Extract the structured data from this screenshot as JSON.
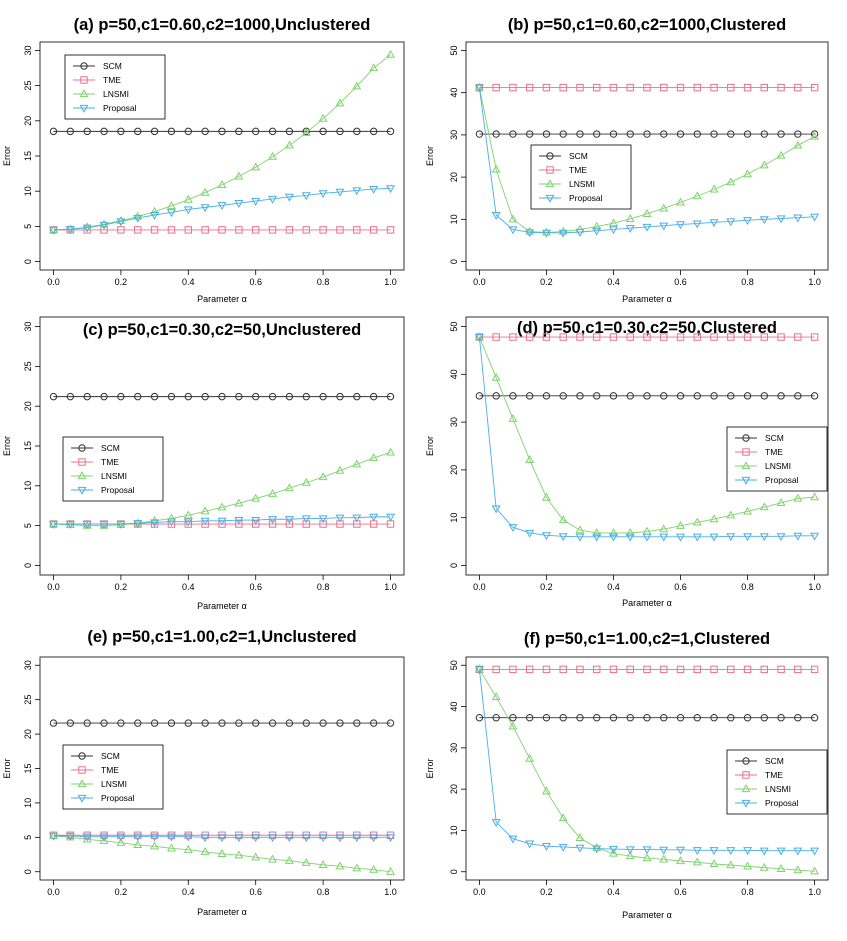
{
  "colors": {
    "SCM": "#333333",
    "TME": "#e8738a",
    "LNSMI": "#7fd36b",
    "Proposal": "#4aaee6"
  },
  "markers": {
    "SCM": "circle",
    "TME": "square",
    "LNSMI": "triangle-up",
    "Proposal": "triangle-down"
  },
  "chart_data": [
    {
      "type": "line",
      "title": "(a) p=50,c1=0.60,c2=1000,Unclustered",
      "xlabel": "Parameter α",
      "ylabel": "Error",
      "xlim": [
        0,
        1
      ],
      "ylim": [
        0,
        30
      ],
      "xticks": [
        0,
        0.2,
        0.4,
        0.6,
        0.8,
        1.0
      ],
      "xtick_labels": [
        "0.0",
        "0.2",
        "0.4",
        "0.6",
        "0.8",
        "1.0"
      ],
      "yticks": [
        0,
        5,
        10,
        15,
        20,
        25,
        30
      ],
      "ytick_labels": [
        "0",
        "5",
        "10",
        "15",
        "20",
        "25",
        "30"
      ],
      "legend": {
        "position": "top-left",
        "entries": [
          "SCM",
          "TME",
          "LNSMI",
          "Proposal"
        ]
      },
      "x": [
        0,
        0.05,
        0.1,
        0.15,
        0.2,
        0.25,
        0.3,
        0.35,
        0.4,
        0.45,
        0.5,
        0.55,
        0.6,
        0.65,
        0.7,
        0.75,
        0.8,
        0.85,
        0.9,
        0.95,
        1.0
      ],
      "series": [
        {
          "name": "SCM",
          "values": [
            18.5,
            18.5,
            18.5,
            18.5,
            18.5,
            18.5,
            18.5,
            18.5,
            18.5,
            18.5,
            18.5,
            18.5,
            18.5,
            18.5,
            18.5,
            18.5,
            18.5,
            18.5,
            18.5,
            18.5,
            18.5
          ]
        },
        {
          "name": "TME",
          "values": [
            4.5,
            4.5,
            4.5,
            4.5,
            4.5,
            4.5,
            4.5,
            4.5,
            4.5,
            4.5,
            4.5,
            4.5,
            4.5,
            4.5,
            4.5,
            4.5,
            4.5,
            4.5,
            4.5,
            4.5,
            4.5
          ]
        },
        {
          "name": "LNSMI",
          "values": [
            4.5,
            4.6,
            4.9,
            5.3,
            5.8,
            6.4,
            7.1,
            7.9,
            8.8,
            9.8,
            10.9,
            12.1,
            13.4,
            14.9,
            16.5,
            18.3,
            20.3,
            22.5,
            24.9,
            27.5,
            29.4
          ]
        },
        {
          "name": "Proposal",
          "values": [
            4.5,
            4.6,
            4.8,
            5.2,
            5.7,
            6.2,
            6.6,
            7.0,
            7.4,
            7.7,
            8.0,
            8.3,
            8.6,
            8.9,
            9.2,
            9.4,
            9.7,
            9.9,
            10.1,
            10.3,
            10.4
          ]
        }
      ]
    },
    {
      "type": "line",
      "title": "(b) p=50,c1=0.60,c2=1000,Clustered",
      "xlabel": "Parameter α",
      "ylabel": "Error",
      "xlim": [
        0,
        1
      ],
      "ylim": [
        0,
        50
      ],
      "xticks": [
        0,
        0.2,
        0.4,
        0.6,
        0.8,
        1.0
      ],
      "xtick_labels": [
        "0.0",
        "0.2",
        "0.4",
        "0.6",
        "0.8",
        "1.0"
      ],
      "yticks": [
        0,
        10,
        20,
        30,
        40,
        50
      ],
      "ytick_labels": [
        "0",
        "10",
        "20",
        "30",
        "40",
        "50"
      ],
      "legend": {
        "position": "center-left",
        "entries": [
          "SCM",
          "TME",
          "LNSMI",
          "Proposal"
        ]
      },
      "x": [
        0,
        0.05,
        0.1,
        0.15,
        0.2,
        0.25,
        0.3,
        0.35,
        0.4,
        0.45,
        0.5,
        0.55,
        0.6,
        0.65,
        0.7,
        0.75,
        0.8,
        0.85,
        0.9,
        0.95,
        1.0
      ],
      "series": [
        {
          "name": "SCM",
          "values": [
            30.2,
            30.2,
            30.2,
            30.2,
            30.2,
            30.2,
            30.2,
            30.2,
            30.2,
            30.2,
            30.2,
            30.2,
            30.2,
            30.2,
            30.2,
            30.2,
            30.2,
            30.2,
            30.2,
            30.2,
            30.2
          ]
        },
        {
          "name": "TME",
          "values": [
            41.2,
            41.2,
            41.2,
            41.2,
            41.2,
            41.2,
            41.2,
            41.2,
            41.2,
            41.2,
            41.2,
            41.2,
            41.2,
            41.2,
            41.2,
            41.2,
            41.2,
            41.2,
            41.2,
            41.2,
            41.2
          ]
        },
        {
          "name": "LNSMI",
          "values": [
            41.2,
            21.8,
            10.0,
            7.1,
            6.9,
            7.1,
            7.6,
            8.3,
            9.1,
            10.1,
            11.3,
            12.6,
            14.0,
            15.5,
            17.1,
            18.8,
            20.7,
            22.8,
            25.1,
            27.5,
            29.6
          ]
        },
        {
          "name": "Proposal",
          "values": [
            41.2,
            11.0,
            7.6,
            6.9,
            6.8,
            6.8,
            7.0,
            7.3,
            7.6,
            7.9,
            8.2,
            8.5,
            8.8,
            9.0,
            9.3,
            9.5,
            9.8,
            10.0,
            10.2,
            10.4,
            10.6
          ]
        }
      ]
    },
    {
      "type": "line",
      "title": "(c) p=50,c1=0.30,c2=50,Unclustered",
      "xlabel": "Parameter α",
      "ylabel": "Error",
      "xlim": [
        0,
        1
      ],
      "ylim": [
        0,
        30
      ],
      "xticks": [
        0,
        0.2,
        0.4,
        0.6,
        0.8,
        1.0
      ],
      "xtick_labels": [
        "0.0",
        "0.2",
        "0.4",
        "0.6",
        "0.8",
        "1.0"
      ],
      "yticks": [
        0,
        5,
        10,
        15,
        20,
        25,
        30
      ],
      "ytick_labels": [
        "0",
        "5",
        "10",
        "15",
        "20",
        "25",
        "30"
      ],
      "legend": {
        "position": "center-left",
        "entries": [
          "SCM",
          "TME",
          "LNSMI",
          "Proposal"
        ]
      },
      "x": [
        0,
        0.05,
        0.1,
        0.15,
        0.2,
        0.25,
        0.3,
        0.35,
        0.4,
        0.45,
        0.5,
        0.55,
        0.6,
        0.65,
        0.7,
        0.75,
        0.8,
        0.85,
        0.9,
        0.95,
        1.0
      ],
      "series": [
        {
          "name": "SCM",
          "values": [
            21.2,
            21.2,
            21.2,
            21.2,
            21.2,
            21.2,
            21.2,
            21.2,
            21.2,
            21.2,
            21.2,
            21.2,
            21.2,
            21.2,
            21.2,
            21.2,
            21.2,
            21.2,
            21.2,
            21.2,
            21.2
          ]
        },
        {
          "name": "TME",
          "values": [
            5.2,
            5.2,
            5.2,
            5.2,
            5.2,
            5.2,
            5.2,
            5.2,
            5.2,
            5.2,
            5.2,
            5.2,
            5.2,
            5.2,
            5.2,
            5.2,
            5.2,
            5.2,
            5.2,
            5.2,
            5.2
          ]
        },
        {
          "name": "LNSMI",
          "values": [
            5.2,
            5.1,
            5.0,
            5.0,
            5.1,
            5.3,
            5.6,
            5.9,
            6.3,
            6.8,
            7.3,
            7.8,
            8.4,
            9.0,
            9.7,
            10.4,
            11.1,
            11.9,
            12.7,
            13.5,
            14.2
          ]
        },
        {
          "name": "Proposal",
          "values": [
            5.2,
            5.2,
            5.2,
            5.2,
            5.2,
            5.3,
            5.4,
            5.5,
            5.5,
            5.6,
            5.6,
            5.7,
            5.7,
            5.8,
            5.8,
            5.9,
            5.9,
            6.0,
            6.0,
            6.1,
            6.1
          ]
        }
      ]
    },
    {
      "type": "line",
      "title": "(d) p=50,c1=0.30,c2=50,Clustered",
      "xlabel": "Parameter α",
      "ylabel": "Error",
      "xlim": [
        0,
        1
      ],
      "ylim": [
        0,
        50
      ],
      "xticks": [
        0,
        0.2,
        0.4,
        0.6,
        0.8,
        1.0
      ],
      "xtick_labels": [
        "0.0",
        "0.2",
        "0.4",
        "0.6",
        "0.8",
        "1.0"
      ],
      "yticks": [
        0,
        10,
        20,
        30,
        40,
        50
      ],
      "ytick_labels": [
        "0",
        "10",
        "20",
        "30",
        "40",
        "50"
      ],
      "legend": {
        "position": "center-right",
        "entries": [
          "SCM",
          "TME",
          "LNSMI",
          "Proposal"
        ]
      },
      "x": [
        0,
        0.05,
        0.1,
        0.15,
        0.2,
        0.25,
        0.3,
        0.35,
        0.4,
        0.45,
        0.5,
        0.55,
        0.6,
        0.65,
        0.7,
        0.75,
        0.8,
        0.85,
        0.9,
        0.95,
        1.0
      ],
      "series": [
        {
          "name": "SCM",
          "values": [
            35.5,
            35.5,
            35.5,
            35.5,
            35.5,
            35.5,
            35.5,
            35.5,
            35.5,
            35.5,
            35.5,
            35.5,
            35.5,
            35.5,
            35.5,
            35.5,
            35.5,
            35.5,
            35.5,
            35.5,
            35.5
          ]
        },
        {
          "name": "TME",
          "values": [
            47.8,
            47.8,
            47.8,
            47.8,
            47.8,
            47.8,
            47.8,
            47.8,
            47.8,
            47.8,
            47.8,
            47.8,
            47.8,
            47.8,
            47.8,
            47.8,
            47.8,
            47.8,
            47.8,
            47.8,
            47.8
          ]
        },
        {
          "name": "LNSMI",
          "values": [
            47.8,
            39.3,
            30.7,
            22.1,
            14.2,
            9.5,
            7.4,
            6.8,
            6.8,
            6.8,
            7.1,
            7.6,
            8.3,
            9.0,
            9.7,
            10.5,
            11.3,
            12.2,
            13.1,
            14.0,
            14.3
          ]
        },
        {
          "name": "Proposal",
          "values": [
            47.8,
            11.9,
            8.0,
            6.8,
            6.3,
            6.1,
            6.0,
            6.0,
            6.0,
            6.0,
            6.0,
            6.0,
            6.0,
            6.0,
            6.0,
            6.1,
            6.1,
            6.1,
            6.1,
            6.2,
            6.2
          ]
        }
      ]
    },
    {
      "type": "line",
      "title": "(e) p=50,c1=1.00,c2=1,Unclustered",
      "xlabel": "Parameter α",
      "ylabel": "Error",
      "xlim": [
        0,
        1
      ],
      "ylim": [
        0,
        30
      ],
      "xticks": [
        0,
        0.2,
        0.4,
        0.6,
        0.8,
        1.0
      ],
      "xtick_labels": [
        "0.0",
        "0.2",
        "0.4",
        "0.6",
        "0.8",
        "1.0"
      ],
      "yticks": [
        0,
        5,
        10,
        15,
        20,
        25,
        30
      ],
      "ytick_labels": [
        "0",
        "5",
        "10",
        "15",
        "20",
        "25",
        "30"
      ],
      "legend": {
        "position": "center-left",
        "entries": [
          "SCM",
          "TME",
          "LNSMI",
          "Proposal"
        ]
      },
      "x": [
        0,
        0.05,
        0.1,
        0.15,
        0.2,
        0.25,
        0.3,
        0.35,
        0.4,
        0.45,
        0.5,
        0.55,
        0.6,
        0.65,
        0.7,
        0.75,
        0.8,
        0.85,
        0.9,
        0.95,
        1.0
      ],
      "series": [
        {
          "name": "SCM",
          "values": [
            21.6,
            21.6,
            21.6,
            21.6,
            21.6,
            21.6,
            21.6,
            21.6,
            21.6,
            21.6,
            21.6,
            21.6,
            21.6,
            21.6,
            21.6,
            21.6,
            21.6,
            21.6,
            21.6,
            21.6,
            21.6
          ]
        },
        {
          "name": "TME",
          "values": [
            5.3,
            5.3,
            5.3,
            5.3,
            5.3,
            5.3,
            5.3,
            5.3,
            5.3,
            5.3,
            5.3,
            5.3,
            5.3,
            5.3,
            5.3,
            5.3,
            5.3,
            5.3,
            5.3,
            5.3,
            5.3
          ]
        },
        {
          "name": "LNSMI",
          "values": [
            5.2,
            5.0,
            4.7,
            4.5,
            4.2,
            3.9,
            3.7,
            3.4,
            3.2,
            2.9,
            2.6,
            2.4,
            2.1,
            1.8,
            1.6,
            1.3,
            1.0,
            0.8,
            0.5,
            0.3,
            0.0
          ]
        },
        {
          "name": "Proposal",
          "values": [
            5.2,
            5.2,
            5.1,
            5.1,
            5.1,
            5.1,
            5.1,
            5.1,
            5.1,
            5.0,
            5.0,
            5.0,
            5.0,
            5.0,
            5.0,
            5.0,
            5.0,
            5.0,
            5.0,
            5.0,
            5.0
          ]
        }
      ]
    },
    {
      "type": "line",
      "title": "(f) p=50,c1=1.00,c2=1,Clustered",
      "xlabel": "Parameter α",
      "ylabel": "Error",
      "xlim": [
        0,
        1
      ],
      "ylim": [
        0,
        50
      ],
      "xticks": [
        0,
        0.2,
        0.4,
        0.6,
        0.8,
        1.0
      ],
      "xtick_labels": [
        "0.0",
        "0.2",
        "0.4",
        "0.6",
        "0.8",
        "1.0"
      ],
      "yticks": [
        0,
        10,
        20,
        30,
        40,
        50
      ],
      "ytick_labels": [
        "0",
        "10",
        "20",
        "30",
        "40",
        "50"
      ],
      "legend": {
        "position": "center-right",
        "entries": [
          "SCM",
          "TME",
          "LNSMI",
          "Proposal"
        ]
      },
      "x": [
        0,
        0.05,
        0.1,
        0.15,
        0.2,
        0.25,
        0.3,
        0.35,
        0.4,
        0.45,
        0.5,
        0.55,
        0.6,
        0.65,
        0.7,
        0.75,
        0.8,
        0.85,
        0.9,
        0.95,
        1.0
      ],
      "series": [
        {
          "name": "SCM",
          "values": [
            37.3,
            37.3,
            37.3,
            37.3,
            37.3,
            37.3,
            37.3,
            37.3,
            37.3,
            37.3,
            37.3,
            37.3,
            37.3,
            37.3,
            37.3,
            37.3,
            37.3,
            37.3,
            37.3,
            37.3,
            37.3
          ]
        },
        {
          "name": "TME",
          "values": [
            49.0,
            49.0,
            49.0,
            49.0,
            49.0,
            49.0,
            49.0,
            49.0,
            49.0,
            49.0,
            49.0,
            49.0,
            49.0,
            49.0,
            49.0,
            49.0,
            49.0,
            49.0,
            49.0,
            49.0,
            49.0
          ]
        },
        {
          "name": "LNSMI",
          "values": [
            49.0,
            42.3,
            35.2,
            27.4,
            19.5,
            13.0,
            8.2,
            5.8,
            4.4,
            3.8,
            3.3,
            3.0,
            2.6,
            2.3,
            1.9,
            1.6,
            1.3,
            1.0,
            0.7,
            0.4,
            0.1
          ]
        },
        {
          "name": "Proposal",
          "values": [
            49.0,
            12.0,
            8.0,
            6.8,
            6.2,
            6.0,
            5.8,
            5.6,
            5.5,
            5.4,
            5.4,
            5.3,
            5.3,
            5.2,
            5.2,
            5.2,
            5.2,
            5.1,
            5.1,
            5.1,
            5.1
          ]
        }
      ]
    }
  ]
}
